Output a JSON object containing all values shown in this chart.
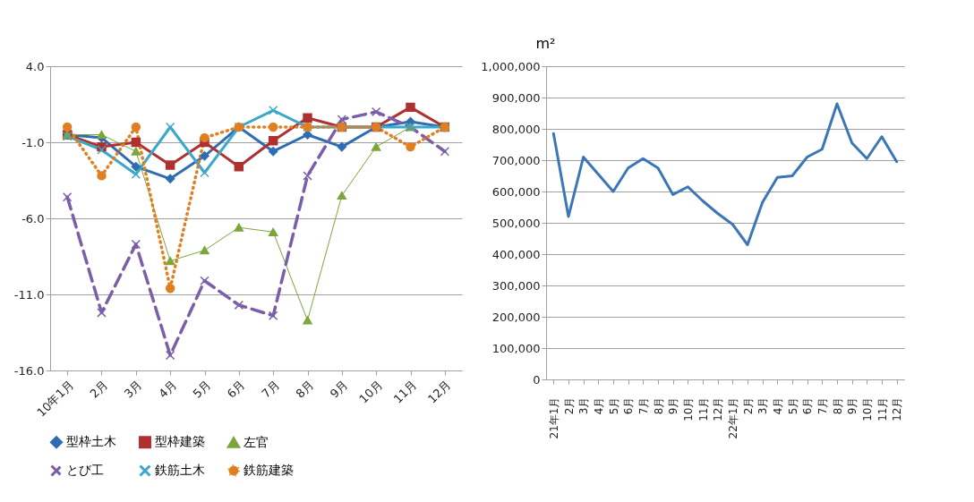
{
  "chart_data": [
    {
      "type": "line",
      "categories": [
        "10年1月",
        "2月",
        "3月",
        "4月",
        "5月",
        "6月",
        "7月",
        "8月",
        "9月",
        "10月",
        "11月",
        "12月"
      ],
      "series": [
        {
          "name": "型枠土木",
          "color": "#2e6db4",
          "marker": "diamond",
          "line_style": "solid",
          "values": [
            -0.5,
            -0.7,
            -2.6,
            -3.4,
            -1.9,
            0,
            -1.6,
            -0.5,
            -1.3,
            0,
            0.35,
            0
          ]
        },
        {
          "name": "型枠建築",
          "color": "#b03030",
          "marker": "square",
          "line_style": "solid",
          "values": [
            -0.5,
            -1.3,
            -1.0,
            -2.5,
            -1.0,
            -2.6,
            -0.9,
            0.6,
            0,
            0,
            1.3,
            0
          ]
        },
        {
          "name": "左官",
          "color": "#7ca63a",
          "marker": "triangle",
          "line_style": "solid",
          "values": [
            -0.5,
            -0.5,
            -1.6,
            -8.8,
            -8.1,
            -6.6,
            -6.9,
            -12.7,
            -4.5,
            -1.3,
            0,
            0
          ]
        },
        {
          "name": "とび工",
          "color": "#7b5ea8",
          "marker": "cross",
          "line_style": "dashed",
          "values": [
            -4.6,
            -12.2,
            -7.7,
            -15.0,
            -10.1,
            -11.7,
            -12.4,
            -3.2,
            0.5,
            1.0,
            0,
            -1.6
          ]
        },
        {
          "name": "鉄筋土木",
          "color": "#3aa8c8",
          "marker": "cross",
          "line_style": "solid",
          "values": [
            -0.6,
            -1.5,
            -3.1,
            0,
            -3.0,
            0,
            1.1,
            0,
            0,
            0,
            0,
            0
          ]
        },
        {
          "name": "鉄筋建築",
          "color": "#e07f22",
          "marker": "circle",
          "line_style": "dotted",
          "values": [
            0,
            -3.2,
            0,
            -10.6,
            -0.7,
            0,
            0,
            0,
            0,
            0,
            -1.3,
            0
          ]
        }
      ],
      "ylim": [
        -16,
        4
      ],
      "yticks": [
        {
          "value": 4,
          "label": "4.0"
        },
        {
          "value": -1,
          "label": "-1.0"
        },
        {
          "value": -6,
          "label": "-6.0"
        },
        {
          "value": -11,
          "label": "-11.0"
        },
        {
          "value": -16,
          "label": "-16.0"
        }
      ],
      "grid": "y",
      "legend": "bottom"
    },
    {
      "type": "line",
      "ylabel": "m²",
      "categories": [
        "21年1月",
        "2月",
        "3月",
        "4月",
        "5月",
        "6月",
        "7月",
        "8月",
        "9月",
        "10月",
        "11月",
        "12月",
        "22年1月",
        "2月",
        "3月",
        "4月",
        "5月",
        "6月",
        "7月",
        "8月",
        "9月",
        "10月",
        "11月",
        "12月"
      ],
      "series": [
        {
          "color": "#3a76b8",
          "values": [
            785000,
            520000,
            710000,
            655000,
            600000,
            675000,
            705000,
            675000,
            590000,
            615000,
            570000,
            530000,
            495000,
            430000,
            565000,
            645000,
            650000,
            710000,
            735000,
            880000,
            755000,
            705000,
            775000,
            695000
          ]
        }
      ],
      "ylim": [
        0,
        1000000
      ],
      "yticks": [
        0,
        {
          "value": 100000,
          "label": "100,000"
        },
        {
          "value": 200000,
          "label": "200,000"
        },
        {
          "value": 300000,
          "label": "300,000"
        },
        {
          "value": 400000,
          "label": "400,000"
        },
        {
          "value": 500000,
          "label": "500,000"
        },
        {
          "value": 600000,
          "label": "600,000"
        },
        {
          "value": 700000,
          "label": "700,000"
        },
        {
          "value": 800000,
          "label": "800,000"
        },
        {
          "value": 900000,
          "label": "900,000"
        },
        {
          "value": 1000000,
          "label": "1,000,000"
        }
      ],
      "grid": "y",
      "marker": "none",
      "legend": false
    }
  ]
}
